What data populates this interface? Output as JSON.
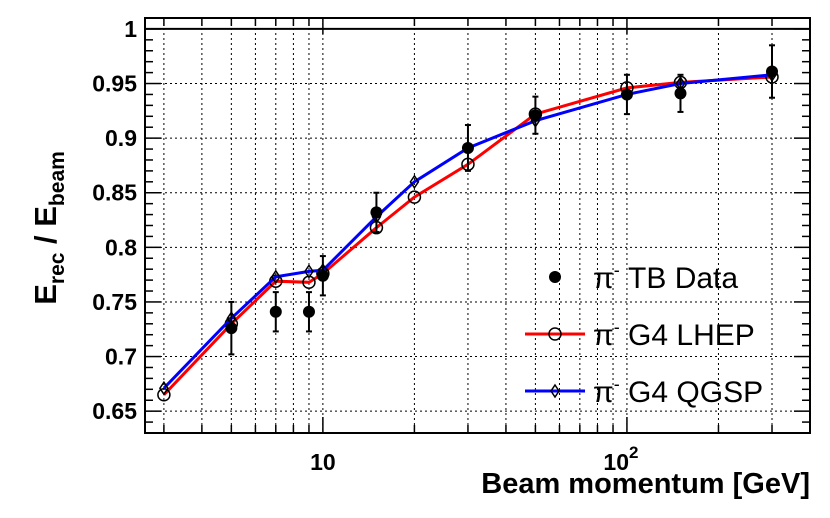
{
  "chart_data": {
    "type": "scatter",
    "xlabel": "Beam momentum [GeV]",
    "ylabel_main": "E",
    "ylabel_sub_num": "rec",
    "ylabel_sep": " / ",
    "ylabel_sub_den": "beam",
    "xscale": "log",
    "xlim": [
      2.6,
      400
    ],
    "ylim": [
      0.63,
      1.01
    ],
    "grid": true,
    "x_major_ticks": [
      {
        "value": 10,
        "label": "10",
        "sup": ""
      },
      {
        "value": 100,
        "label": "10",
        "sup": "2"
      }
    ],
    "y_ticks": [
      {
        "value": 0.65,
        "label": "0.65"
      },
      {
        "value": 0.7,
        "label": "0.7"
      },
      {
        "value": 0.75,
        "label": "0.75"
      },
      {
        "value": 0.8,
        "label": "0.8"
      },
      {
        "value": 0.85,
        "label": "0.85"
      },
      {
        "value": 0.9,
        "label": "0.9"
      },
      {
        "value": 0.95,
        "label": "0.95"
      },
      {
        "value": 1.0,
        "label": "1"
      }
    ],
    "reference_line": {
      "y": 1.0,
      "color": "#000000"
    },
    "legend_position": "bottom-right",
    "series": [
      {
        "name": "π⁻ TB Data",
        "legend_sym": "π",
        "legend_sup": "-",
        "legend_rest": " TB Data",
        "marker": "filled-circle",
        "color": "#000000",
        "line": false,
        "points": [
          {
            "x": 5,
            "y": 0.726,
            "err": 0.024
          },
          {
            "x": 7,
            "y": 0.741,
            "err": 0.018
          },
          {
            "x": 9,
            "y": 0.741,
            "err": 0.018
          },
          {
            "x": 10,
            "y": 0.774,
            "err": 0.018
          },
          {
            "x": 15,
            "y": 0.832,
            "err": 0.018
          },
          {
            "x": 30,
            "y": 0.891,
            "err": 0.021
          },
          {
            "x": 50,
            "y": 0.921,
            "err": 0.017
          },
          {
            "x": 100,
            "y": 0.94,
            "err": 0.018
          },
          {
            "x": 150,
            "y": 0.941,
            "err": 0.017
          },
          {
            "x": 300,
            "y": 0.961,
            "err": 0.024
          }
        ]
      },
      {
        "name": "π⁻ G4 LHEP",
        "legend_sym": "π",
        "legend_sup": "-",
        "legend_rest": " G4 LHEP",
        "marker": "open-circle",
        "color": "#ff0000",
        "line": true,
        "points": [
          {
            "x": 3,
            "y": 0.665
          },
          {
            "x": 5,
            "y": 0.73
          },
          {
            "x": 7,
            "y": 0.769
          },
          {
            "x": 9,
            "y": 0.768
          },
          {
            "x": 10,
            "y": 0.776
          },
          {
            "x": 15,
            "y": 0.818
          },
          {
            "x": 20,
            "y": 0.846
          },
          {
            "x": 30,
            "y": 0.876
          },
          {
            "x": 50,
            "y": 0.922
          },
          {
            "x": 100,
            "y": 0.946
          },
          {
            "x": 150,
            "y": 0.951
          },
          {
            "x": 300,
            "y": 0.956
          }
        ]
      },
      {
        "name": "π⁻ G4 QGSP",
        "legend_sym": "π",
        "legend_sup": "-",
        "legend_rest": " G4 QGSP",
        "marker": "open-diamond",
        "color": "#0000ff",
        "line": true,
        "points": [
          {
            "x": 3,
            "y": 0.671
          },
          {
            "x": 5,
            "y": 0.735
          },
          {
            "x": 7,
            "y": 0.773
          },
          {
            "x": 9,
            "y": 0.778
          },
          {
            "x": 10,
            "y": 0.779
          },
          {
            "x": 15,
            "y": 0.828
          },
          {
            "x": 20,
            "y": 0.86
          },
          {
            "x": 30,
            "y": 0.891
          },
          {
            "x": 50,
            "y": 0.916
          },
          {
            "x": 100,
            "y": 0.94
          },
          {
            "x": 150,
            "y": 0.95
          },
          {
            "x": 300,
            "y": 0.958
          }
        ]
      }
    ]
  }
}
